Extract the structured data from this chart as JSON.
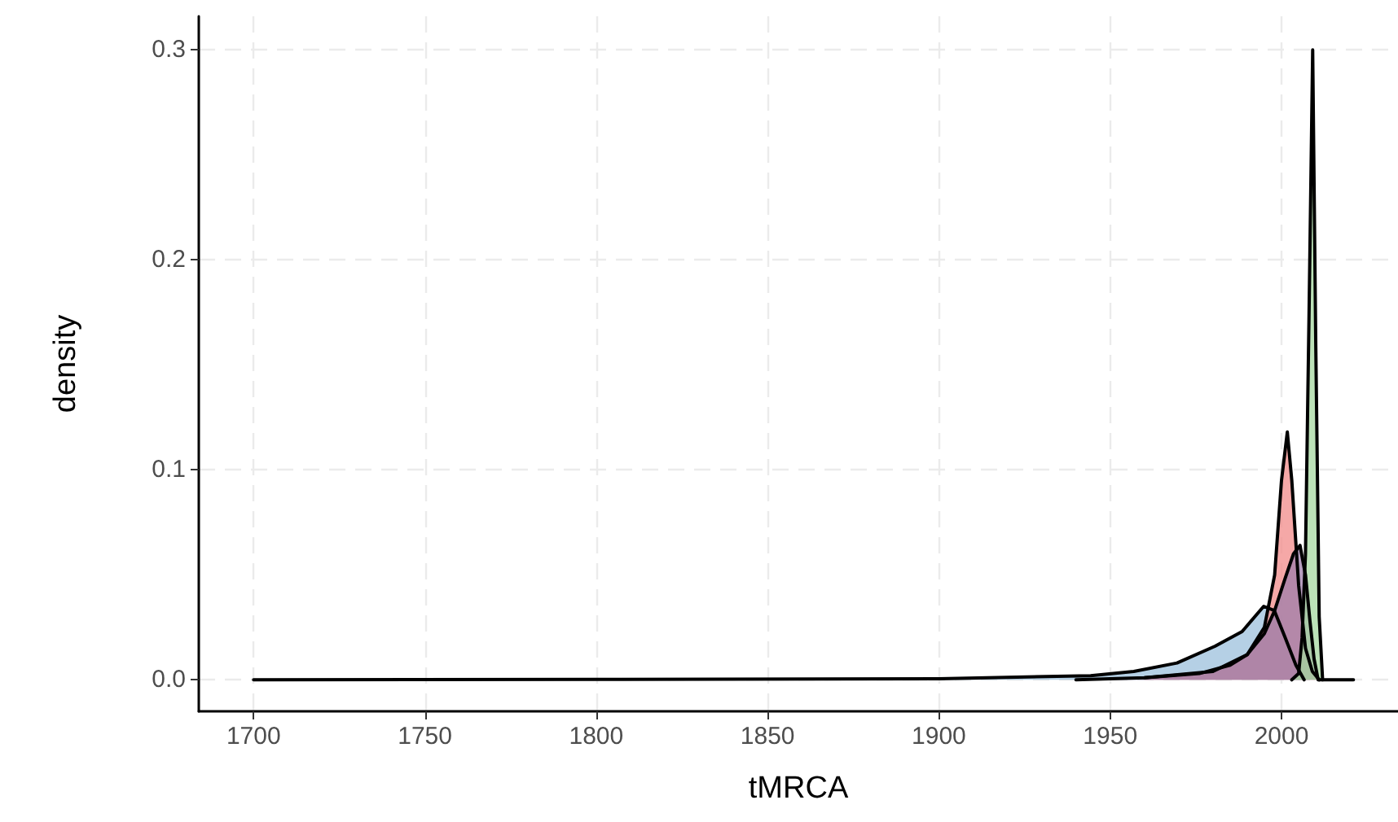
{
  "chart_data": {
    "type": "area",
    "xlabel": "tMRCA",
    "ylabel": "density",
    "xlim": [
      1684,
      2034
    ],
    "ylim": [
      -0.015,
      0.316
    ],
    "xticks": [
      1700,
      1750,
      1800,
      1850,
      1900,
      1950,
      2000
    ],
    "yticks": [
      {
        "value": 0,
        "label": "0.0"
      },
      0.1,
      0.2,
      0.3
    ],
    "grid": true,
    "line_style": "solid",
    "marker": "none",
    "series": [
      {
        "color": "#9cc0dc",
        "x": [
          1700,
          1800,
          1900,
          1944.3,
          1956.9,
          1969.5,
          1980.6,
          1988.5,
          1994.8,
          1997.9,
          2001.1,
          2004.2,
          2006.6
        ],
        "values": [
          0,
          0.0002,
          0.0005,
          0.002,
          0.004,
          0.008,
          0.016,
          0.023,
          0.035,
          0.033,
          0.02,
          0.007,
          0
        ]
      },
      {
        "color": "#f28b8a",
        "x": [
          1960,
          1980,
          1990,
          1995,
          1998,
          2000,
          2001.7,
          2003,
          2005,
          2007,
          2009,
          2011
        ],
        "values": [
          0.001,
          0.004,
          0.012,
          0.025,
          0.05,
          0.095,
          0.118,
          0.095,
          0.045,
          0.015,
          0.004,
          0
        ]
      },
      {
        "color": "#9e7eaa",
        "x": [
          1940,
          1960,
          1976,
          1985,
          1990,
          1995,
          1998,
          2001,
          2003.5,
          2005.4,
          2007,
          2008.3,
          2009.5,
          2010.7,
          2021
        ],
        "values": [
          0,
          0.001,
          0.003,
          0.007,
          0.012,
          0.022,
          0.033,
          0.048,
          0.06,
          0.064,
          0.05,
          0.028,
          0.01,
          0,
          0
        ]
      },
      {
        "color": "#a6d8a0",
        "x": [
          2003,
          2005,
          2006,
          2007,
          2008,
          2009.1,
          2010,
          2011,
          2012
        ],
        "values": [
          0,
          0.003,
          0.02,
          0.06,
          0.17,
          0.3,
          0.16,
          0.03,
          0
        ]
      }
    ]
  }
}
